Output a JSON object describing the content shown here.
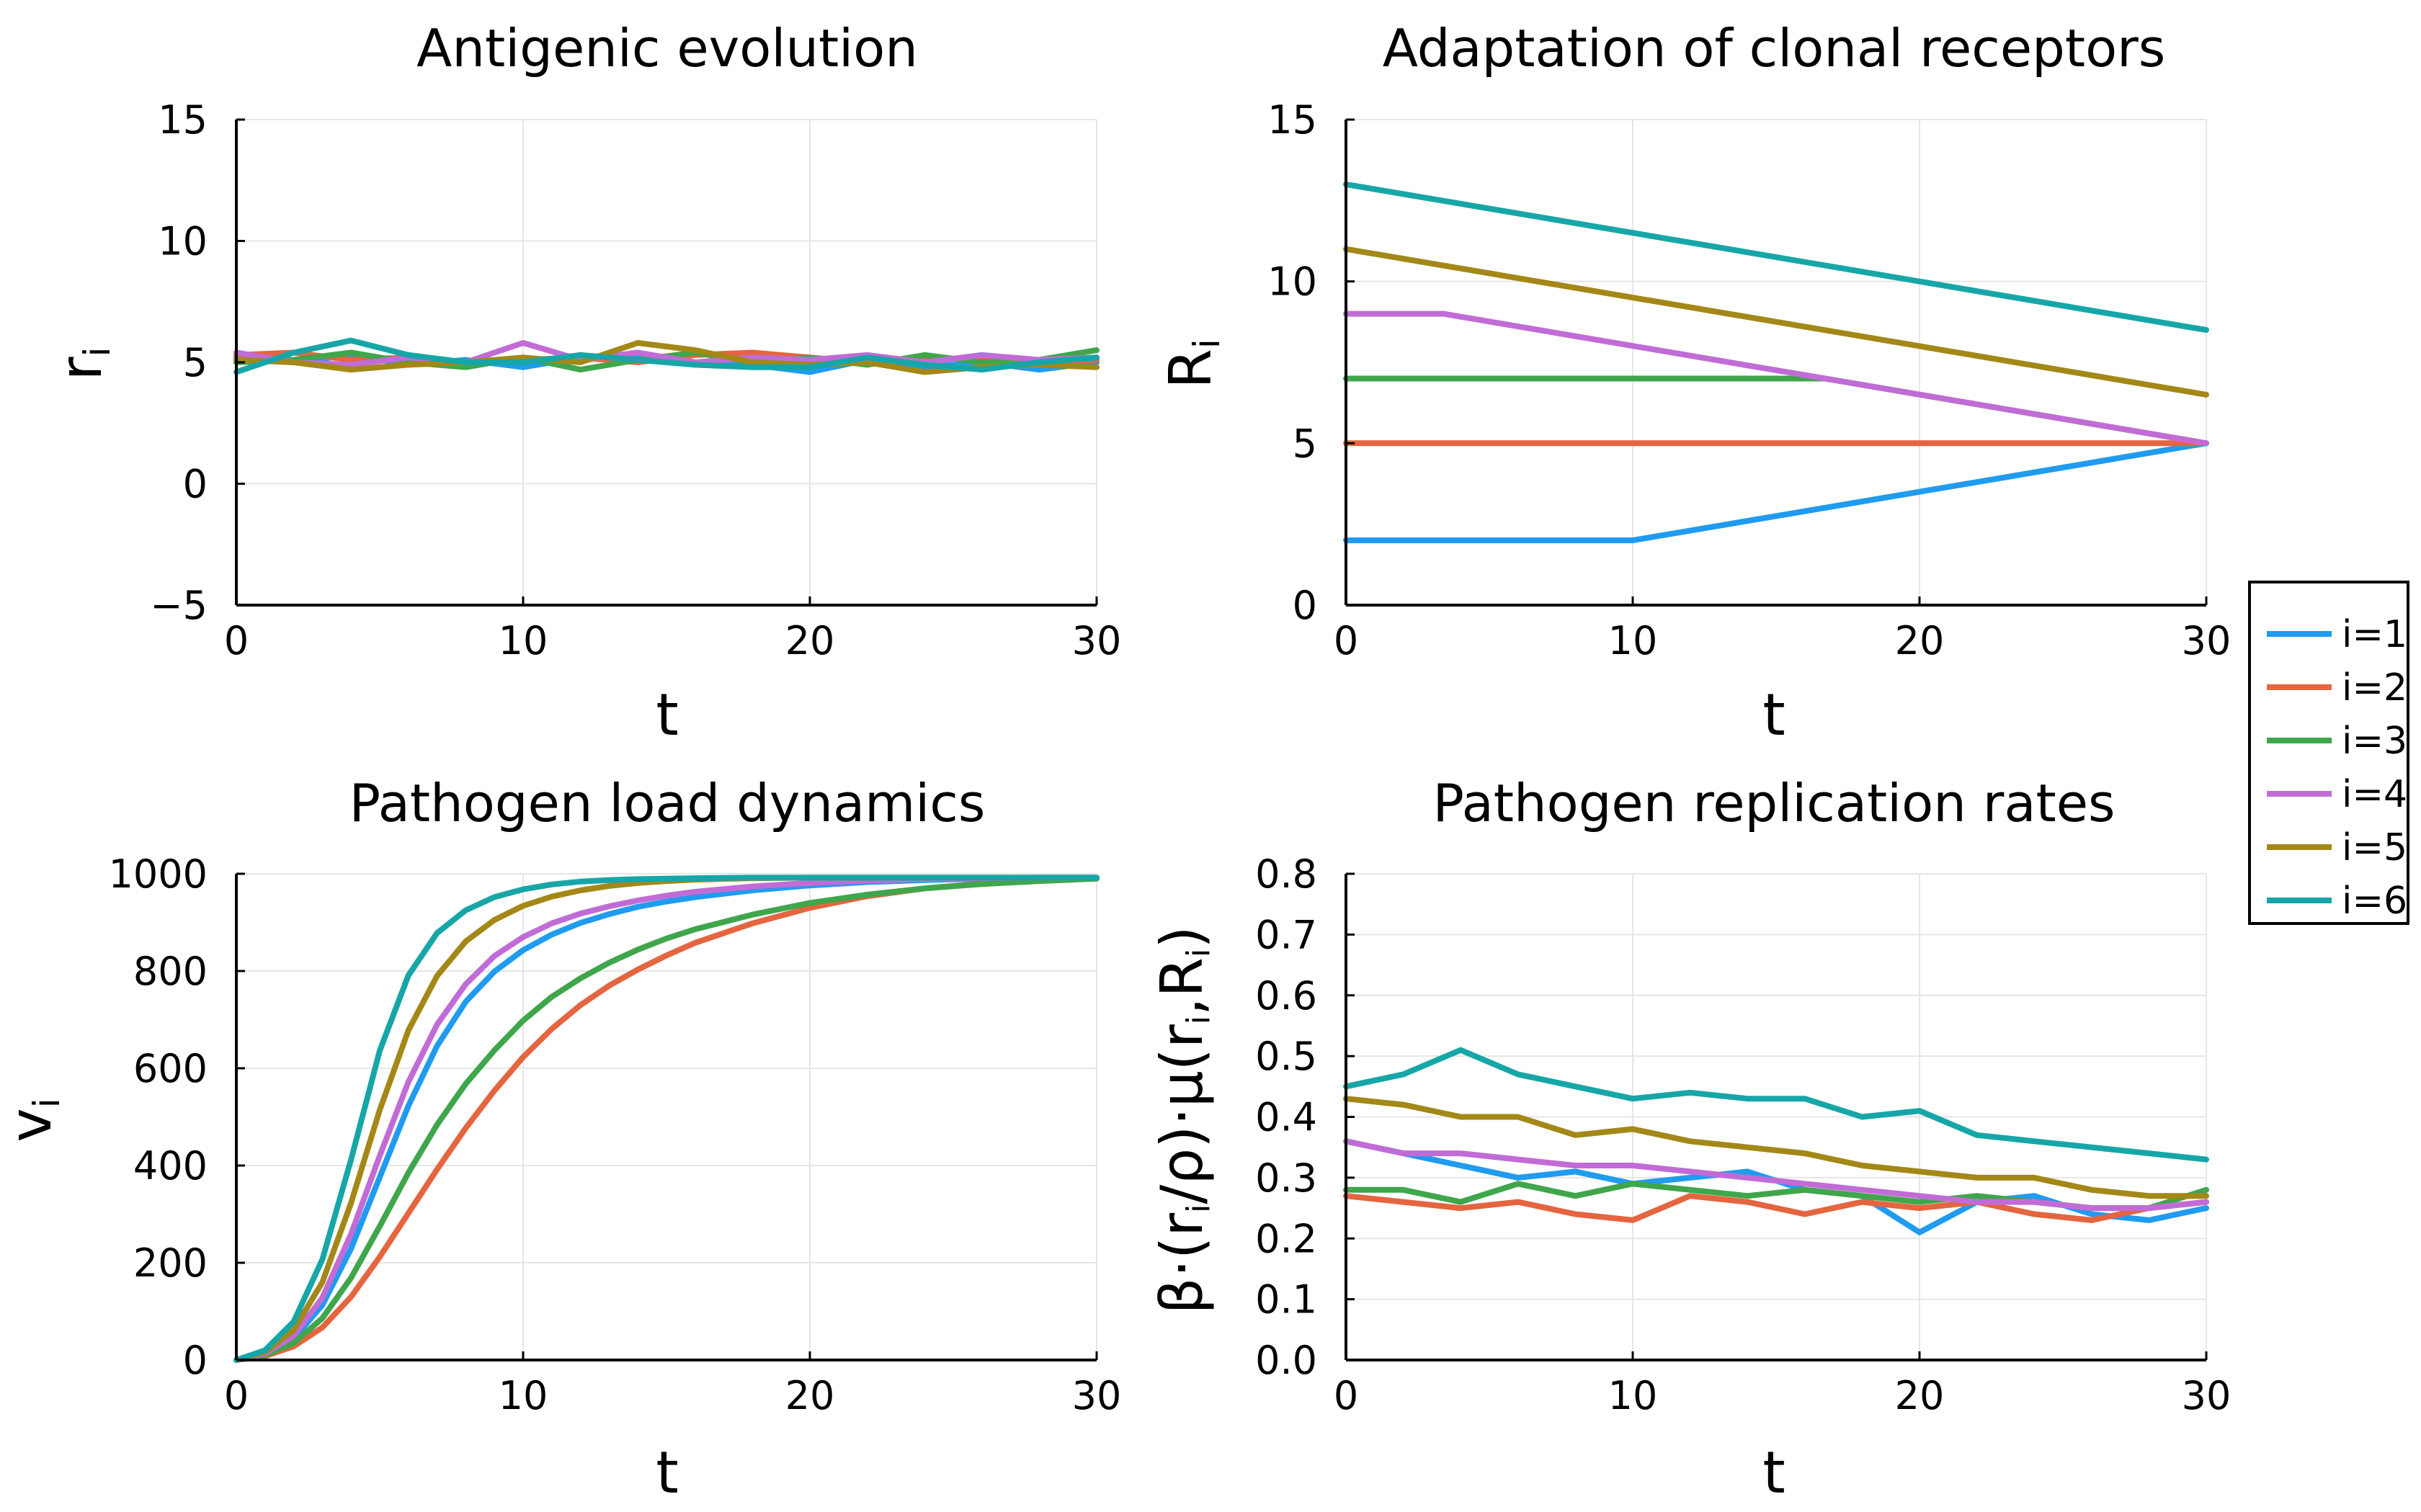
{
  "colors": [
    "#1f9bf0",
    "#e4653f",
    "#3fa64b",
    "#c16cd6",
    "#a38818",
    "#17a6a8"
  ],
  "legend": {
    "entries": [
      "i=1",
      "i=2",
      "i=3",
      "i=4",
      "i=5",
      "i=6"
    ],
    "placement": "right-middle"
  },
  "chart_data": [
    {
      "type": "line",
      "title": "Antigenic evolution",
      "xlabel": "t",
      "ylabel": "r",
      "ylabel_sub": "i",
      "xlim": [
        0,
        30
      ],
      "ylim": [
        -5,
        15
      ],
      "xticks": [
        0,
        10,
        20,
        30
      ],
      "yticks": [
        -5,
        0,
        5,
        10,
        15
      ],
      "ytick_labels": [
        "−5",
        "0",
        "5",
        "10",
        "15"
      ],
      "series": [
        {
          "name": "i=1",
          "x": [
            0,
            2,
            4,
            6,
            8,
            10,
            12,
            14,
            16,
            18,
            20,
            22,
            24,
            26,
            28,
            30
          ],
          "y": [
            5.2,
            5.0,
            5.3,
            4.9,
            5.1,
            4.8,
            5.2,
            5.3,
            5.0,
            4.9,
            4.6,
            5.1,
            4.8,
            5.0,
            4.7,
            5.0
          ]
        },
        {
          "name": "i=2",
          "x": [
            0,
            2,
            4,
            6,
            8,
            10,
            12,
            14,
            16,
            18,
            20,
            22,
            24,
            26,
            28,
            30
          ],
          "y": [
            5.3,
            5.4,
            5.1,
            5.2,
            5.0,
            5.1,
            5.2,
            5.0,
            5.3,
            5.4,
            5.2,
            5.0,
            5.1,
            5.2,
            5.0,
            5.1
          ]
        },
        {
          "name": "i=3",
          "x": [
            0,
            2,
            4,
            6,
            8,
            10,
            12,
            14,
            16,
            18,
            20,
            22,
            24,
            26,
            28,
            30
          ],
          "y": [
            5.0,
            5.1,
            5.4,
            5.0,
            4.8,
            5.2,
            4.7,
            5.1,
            5.4,
            5.0,
            5.2,
            4.9,
            5.3,
            5.0,
            5.1,
            5.5
          ]
        },
        {
          "name": "i=4",
          "x": [
            0,
            2,
            4,
            6,
            8,
            10,
            12,
            14,
            16,
            18,
            20,
            22,
            24,
            26,
            28,
            30
          ],
          "y": [
            5.4,
            5.0,
            4.9,
            5.2,
            5.0,
            5.8,
            5.1,
            5.4,
            5.0,
            5.2,
            5.1,
            5.3,
            5.0,
            5.3,
            5.1,
            5.2
          ]
        },
        {
          "name": "i=5",
          "x": [
            0,
            2,
            4,
            6,
            8,
            10,
            12,
            14,
            16,
            18,
            20,
            22,
            24,
            26,
            28,
            30
          ],
          "y": [
            5.1,
            5.0,
            4.7,
            4.9,
            5.0,
            5.2,
            5.0,
            5.8,
            5.5,
            5.0,
            4.9,
            5.0,
            4.6,
            4.8,
            4.9,
            4.8
          ]
        },
        {
          "name": "i=6",
          "x": [
            0,
            2,
            4,
            6,
            8,
            10,
            12,
            14,
            16,
            18,
            20,
            22,
            24,
            26,
            28,
            30
          ],
          "y": [
            4.6,
            5.4,
            5.9,
            5.3,
            5.0,
            5.0,
            5.3,
            5.1,
            4.9,
            4.8,
            4.8,
            5.2,
            4.9,
            4.7,
            5.0,
            5.2
          ]
        }
      ]
    },
    {
      "type": "line",
      "title": "Adaptation of clonal receptors",
      "xlabel": "t",
      "ylabel": "R",
      "ylabel_sub": "i",
      "xlim": [
        0,
        30
      ],
      "ylim": [
        0,
        15
      ],
      "xticks": [
        0,
        10,
        20,
        30
      ],
      "yticks": [
        0,
        5,
        10,
        15
      ],
      "ytick_labels": [
        "0",
        "5",
        "10",
        "15"
      ],
      "series": [
        {
          "name": "i=1",
          "x": [
            0,
            10,
            30
          ],
          "y": [
            2,
            2,
            5
          ]
        },
        {
          "name": "i=2",
          "x": [
            0,
            30
          ],
          "y": [
            5,
            5
          ]
        },
        {
          "name": "i=3",
          "x": [
            0,
            16.7,
            30
          ],
          "y": [
            7,
            7,
            5
          ]
        },
        {
          "name": "i=4",
          "x": [
            0,
            3.4,
            30
          ],
          "y": [
            9,
            9,
            5
          ]
        },
        {
          "name": "i=5",
          "x": [
            0,
            30
          ],
          "y": [
            11,
            6.5
          ]
        },
        {
          "name": "i=6",
          "x": [
            0,
            30
          ],
          "y": [
            13,
            8.5
          ]
        }
      ]
    },
    {
      "type": "line",
      "title": "Pathogen load dynamics",
      "xlabel": "t",
      "ylabel": "v",
      "ylabel_sub": "i",
      "xlim": [
        0,
        30
      ],
      "ylim": [
        0,
        1000
      ],
      "xticks": [
        0,
        10,
        20,
        30
      ],
      "yticks": [
        0,
        200,
        400,
        600,
        800,
        1000
      ],
      "ytick_labels": [
        "0",
        "200",
        "400",
        "600",
        "800",
        "1000"
      ],
      "series": [
        {
          "name": "i=1",
          "x": [
            0,
            1,
            2,
            3,
            4,
            5,
            6,
            7,
            8,
            9,
            10,
            11,
            12,
            13,
            14,
            15,
            16,
            18,
            20,
            22,
            24,
            26,
            28,
            30
          ],
          "y": [
            0,
            12,
            44,
            113,
            229,
            376,
            523,
            646,
            737,
            799,
            843,
            875,
            899,
            917,
            932,
            943,
            952,
            966,
            976,
            983,
            987,
            990,
            991,
            992
          ]
        },
        {
          "name": "i=2",
          "x": [
            0,
            1,
            2,
            3,
            4,
            5,
            6,
            7,
            8,
            9,
            10,
            11,
            12,
            13,
            14,
            15,
            16,
            18,
            20,
            22,
            24,
            26,
            28,
            30
          ],
          "y": [
            0,
            8,
            28,
            67,
            130,
            212,
            302,
            392,
            477,
            554,
            623,
            681,
            730,
            770,
            803,
            832,
            858,
            898,
            930,
            954,
            970,
            980,
            987,
            991
          ]
        },
        {
          "name": "i=3",
          "x": [
            0,
            1,
            2,
            3,
            4,
            5,
            6,
            7,
            8,
            9,
            10,
            11,
            12,
            13,
            14,
            15,
            16,
            18,
            20,
            22,
            24,
            26,
            28,
            30
          ],
          "y": [
            0,
            10,
            35,
            86,
            169,
            275,
            385,
            484,
            568,
            637,
            698,
            747,
            785,
            817,
            844,
            867,
            886,
            916,
            940,
            957,
            970,
            979,
            985,
            990
          ]
        },
        {
          "name": "i=4",
          "x": [
            0,
            1,
            2,
            3,
            4,
            5,
            6,
            7,
            8,
            9,
            10,
            11,
            12,
            13,
            14,
            15,
            16,
            18,
            20,
            22,
            24,
            26,
            28,
            30
          ],
          "y": [
            0,
            13,
            50,
            128,
            259,
            420,
            572,
            690,
            773,
            831,
            870,
            898,
            918,
            933,
            945,
            955,
            963,
            974,
            981,
            986,
            989,
            991,
            992,
            992
          ]
        },
        {
          "name": "i=5",
          "x": [
            0,
            1,
            2,
            3,
            4,
            5,
            6,
            7,
            8,
            9,
            10,
            11,
            12,
            13,
            14,
            15,
            16,
            18,
            20,
            22,
            24,
            26,
            28,
            30
          ],
          "y": [
            0,
            16,
            62,
            160,
            323,
            514,
            678,
            790,
            861,
            905,
            934,
            953,
            966,
            975,
            981,
            985,
            988,
            991,
            992,
            992,
            992,
            992,
            992,
            992
          ]
        },
        {
          "name": "i=6",
          "x": [
            0,
            1,
            2,
            3,
            4,
            5,
            6,
            7,
            8,
            9,
            10,
            11,
            12,
            13,
            14,
            15,
            16,
            18,
            20,
            22,
            24,
            26,
            28,
            30
          ],
          "y": [
            0,
            20,
            79,
            207,
            412,
            636,
            791,
            878,
            925,
            952,
            968,
            978,
            984,
            987,
            989,
            990,
            991,
            992,
            992,
            992,
            992,
            992,
            992,
            992
          ]
        }
      ]
    },
    {
      "type": "line",
      "title": "Pathogen replication rates",
      "xlabel": "t",
      "ylabel": "β·(r",
      "ylabel_parts": [
        "β·(r",
        "i",
        "/ρ)·μ(r",
        "i",
        ",R",
        "i",
        ")"
      ],
      "xlim": [
        0,
        30
      ],
      "ylim": [
        0,
        0.8
      ],
      "xticks": [
        0,
        10,
        20,
        30
      ],
      "yticks": [
        0,
        0.1,
        0.2,
        0.3,
        0.4,
        0.5,
        0.6,
        0.7,
        0.8
      ],
      "ytick_labels": [
        "0.0",
        "0.1",
        "0.2",
        "0.3",
        "0.4",
        "0.5",
        "0.6",
        "0.7",
        "0.8"
      ],
      "series": [
        {
          "name": "i=1",
          "x": [
            0,
            2,
            4,
            6,
            8,
            10,
            12,
            14,
            16,
            18,
            20,
            22,
            24,
            26,
            28,
            30
          ],
          "y": [
            0.36,
            0.34,
            0.32,
            0.3,
            0.31,
            0.29,
            0.3,
            0.31,
            0.28,
            0.27,
            0.21,
            0.26,
            0.27,
            0.24,
            0.23,
            0.25
          ]
        },
        {
          "name": "i=2",
          "x": [
            0,
            2,
            4,
            6,
            8,
            10,
            12,
            14,
            16,
            18,
            20,
            22,
            24,
            26,
            28,
            30
          ],
          "y": [
            0.27,
            0.26,
            0.25,
            0.26,
            0.24,
            0.23,
            0.27,
            0.26,
            0.24,
            0.26,
            0.25,
            0.26,
            0.24,
            0.23,
            0.25,
            0.26
          ]
        },
        {
          "name": "i=3",
          "x": [
            0,
            2,
            4,
            6,
            8,
            10,
            12,
            14,
            16,
            18,
            20,
            22,
            24,
            26,
            28,
            30
          ],
          "y": [
            0.28,
            0.28,
            0.26,
            0.29,
            0.27,
            0.29,
            0.28,
            0.27,
            0.28,
            0.27,
            0.26,
            0.27,
            0.26,
            0.25,
            0.25,
            0.28
          ]
        },
        {
          "name": "i=4",
          "x": [
            0,
            2,
            4,
            6,
            8,
            10,
            12,
            14,
            16,
            18,
            20,
            22,
            24,
            26,
            28,
            30
          ],
          "y": [
            0.36,
            0.34,
            0.34,
            0.33,
            0.32,
            0.32,
            0.31,
            0.3,
            0.29,
            0.28,
            0.27,
            0.26,
            0.26,
            0.25,
            0.25,
            0.26
          ]
        },
        {
          "name": "i=5",
          "x": [
            0,
            2,
            4,
            6,
            8,
            10,
            12,
            14,
            16,
            18,
            20,
            22,
            24,
            26,
            28,
            30
          ],
          "y": [
            0.43,
            0.42,
            0.4,
            0.4,
            0.37,
            0.38,
            0.36,
            0.35,
            0.34,
            0.32,
            0.31,
            0.3,
            0.3,
            0.28,
            0.27,
            0.27
          ]
        },
        {
          "name": "i=6",
          "x": [
            0,
            2,
            4,
            6,
            8,
            10,
            12,
            14,
            16,
            18,
            20,
            22,
            24,
            26,
            28,
            30
          ],
          "y": [
            0.45,
            0.47,
            0.51,
            0.47,
            0.45,
            0.43,
            0.44,
            0.43,
            0.43,
            0.4,
            0.41,
            0.37,
            0.36,
            0.35,
            0.34,
            0.33
          ]
        }
      ]
    }
  ]
}
